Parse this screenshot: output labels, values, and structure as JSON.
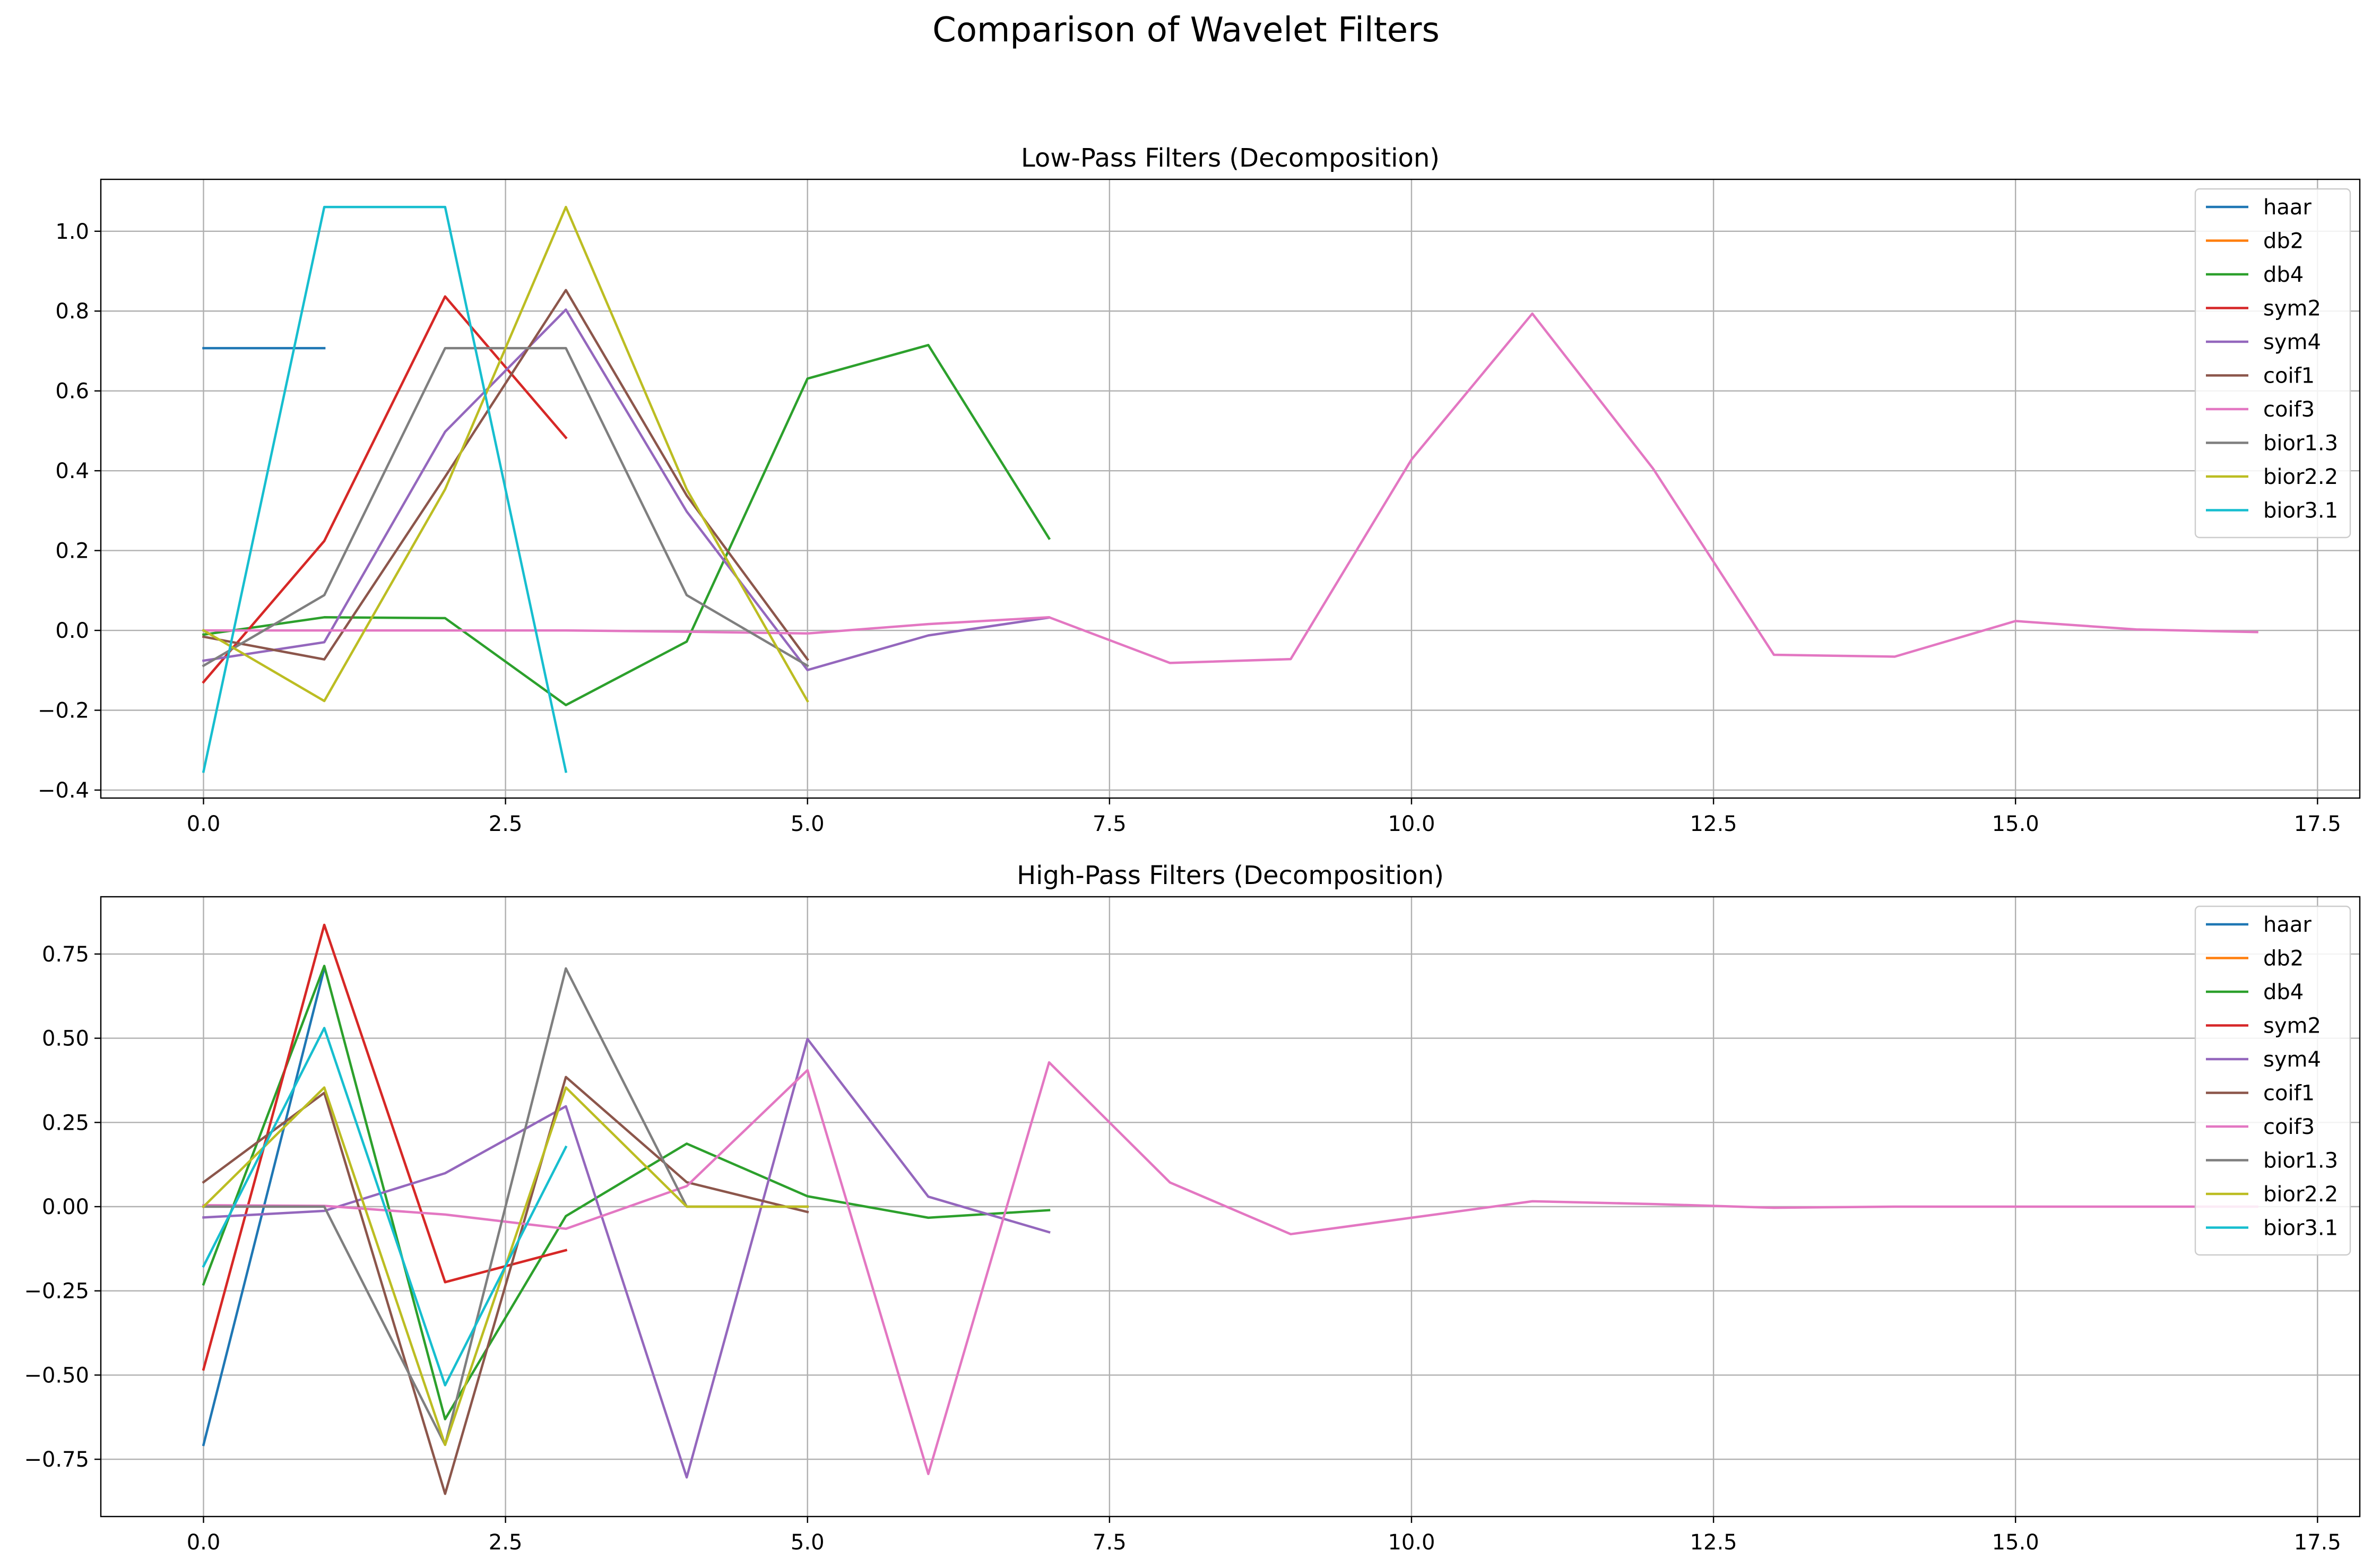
{
  "figure": {
    "title": "Comparison of Wavelet Filters"
  },
  "chart_data": [
    {
      "type": "line",
      "title": "Low-Pass Filters (Decomposition)",
      "xlabel": "",
      "ylabel": "",
      "xlim": [
        -0.85,
        17.85
      ],
      "ylim": [
        -0.42,
        1.13
      ],
      "xticks": [
        0,
        2.5,
        5,
        7.5,
        10,
        12.5,
        15,
        17.5
      ],
      "xtick_labels": [
        "0.0",
        "2.5",
        "5.0",
        "7.5",
        "10.0",
        "12.5",
        "15.0",
        "17.5"
      ],
      "yticks": [
        -0.4,
        -0.2,
        0.0,
        0.2,
        0.4,
        0.6,
        0.8,
        1.0
      ],
      "ytick_labels": [
        "−0.4",
        "−0.2",
        "0.0",
        "0.2",
        "0.4",
        "0.6",
        "0.8",
        "1.0"
      ],
      "grid": true,
      "legend_position": "top-right",
      "series": [
        {
          "name": "haar",
          "color": "#1f77b4",
          "values": [
            0.7071,
            0.7071
          ]
        },
        {
          "name": "db2",
          "color": "#ff7f0e",
          "values": [
            -0.1294,
            0.2241,
            0.8365,
            0.483
          ]
        },
        {
          "name": "db4",
          "color": "#2ca02c",
          "values": [
            -0.0106,
            0.0329,
            0.0308,
            -0.187,
            -0.028,
            0.6309,
            0.7148,
            0.2304
          ]
        },
        {
          "name": "sym2",
          "color": "#d62728",
          "values": [
            -0.1294,
            0.2241,
            0.8365,
            0.483
          ]
        },
        {
          "name": "sym4",
          "color": "#9467bd",
          "values": [
            -0.0758,
            -0.0296,
            0.4976,
            0.8037,
            0.2979,
            -0.0992,
            -0.0126,
            0.0322
          ]
        },
        {
          "name": "coif1",
          "color": "#8c564b",
          "values": [
            -0.0157,
            -0.0727,
            0.3849,
            0.8526,
            0.3379,
            -0.0727
          ]
        },
        {
          "name": "coif3",
          "color": "#e377c2",
          "values": [
            -0.0,
            0.0,
            0.0,
            0.0,
            -0.0033,
            -0.0077,
            0.0159,
            0.0329,
            -0.0816,
            -0.0719,
            0.4283,
            0.7937,
            0.4051,
            -0.0611,
            -0.0657,
            0.0235,
            0.0023,
            -0.0042
          ]
        },
        {
          "name": "bior1.3",
          "color": "#7f7f7f",
          "values": [
            -0.0884,
            0.0884,
            0.7071,
            0.7071,
            0.0884,
            -0.0884
          ]
        },
        {
          "name": "bior2.2",
          "color": "#bcbd22",
          "values": [
            0.0,
            -0.1768,
            0.3536,
            1.0607,
            0.3536,
            -0.1768
          ]
        },
        {
          "name": "bior3.1",
          "color": "#17becf",
          "values": [
            -0.3536,
            1.0607,
            1.0607,
            -0.3536
          ]
        }
      ]
    },
    {
      "type": "line",
      "title": "High-Pass Filters (Decomposition)",
      "xlabel": "",
      "ylabel": "",
      "xlim": [
        -0.85,
        17.85
      ],
      "ylim": [
        -0.92,
        0.92
      ],
      "xticks": [
        0,
        2.5,
        5,
        7.5,
        10,
        12.5,
        15,
        17.5
      ],
      "xtick_labels": [
        "0.0",
        "2.5",
        "5.0",
        "7.5",
        "10.0",
        "12.5",
        "15.0",
        "17.5"
      ],
      "yticks": [
        -0.75,
        -0.5,
        -0.25,
        0.0,
        0.25,
        0.5,
        0.75
      ],
      "ytick_labels": [
        "−0.75",
        "−0.50",
        "−0.25",
        "0.00",
        "0.25",
        "0.50",
        "0.75"
      ],
      "grid": true,
      "legend_position": "top-right",
      "series": [
        {
          "name": "haar",
          "color": "#1f77b4",
          "values": [
            -0.7071,
            0.7071
          ]
        },
        {
          "name": "db2",
          "color": "#ff7f0e",
          "values": [
            -0.483,
            0.8365,
            -0.2241,
            -0.1294
          ]
        },
        {
          "name": "db4",
          "color": "#2ca02c",
          "values": [
            -0.2304,
            0.7148,
            -0.6309,
            -0.028,
            0.187,
            0.0308,
            -0.0329,
            -0.0106
          ]
        },
        {
          "name": "sym2",
          "color": "#d62728",
          "values": [
            -0.483,
            0.8365,
            -0.2241,
            -0.1294
          ]
        },
        {
          "name": "sym4",
          "color": "#9467bd",
          "values": [
            -0.0322,
            -0.0126,
            0.0992,
            0.2979,
            -0.8037,
            0.4976,
            0.0296,
            -0.0758
          ]
        },
        {
          "name": "coif1",
          "color": "#8c564b",
          "values": [
            0.0727,
            0.3379,
            -0.8526,
            0.3849,
            0.0727,
            -0.0157
          ]
        },
        {
          "name": "coif3",
          "color": "#e377c2",
          "values": [
            0.0042,
            0.0023,
            -0.0235,
            -0.0657,
            0.0611,
            0.4051,
            -0.7937,
            0.4283,
            0.0719,
            -0.0816,
            -0.0329,
            0.0159,
            0.0077,
            -0.0033,
            0.0,
            0.0,
            0.0,
            0.0
          ]
        },
        {
          "name": "bior1.3",
          "color": "#7f7f7f",
          "values": [
            0.0,
            0.0,
            -0.7071,
            0.7071,
            0.0,
            0.0
          ]
        },
        {
          "name": "bior2.2",
          "color": "#bcbd22",
          "values": [
            0.0,
            0.3536,
            -0.7071,
            0.3536,
            0.0,
            0.0
          ]
        },
        {
          "name": "bior3.1",
          "color": "#17becf",
          "values": [
            -0.1768,
            0.5303,
            -0.5303,
            0.1768
          ]
        }
      ]
    }
  ]
}
